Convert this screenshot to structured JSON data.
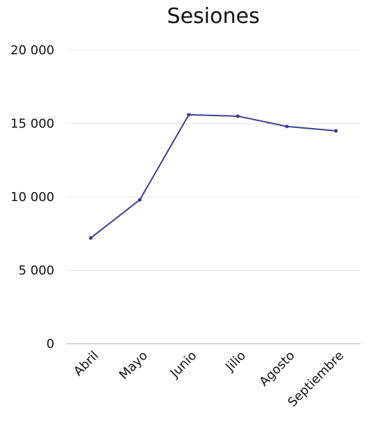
{
  "chart_data": {
    "type": "line",
    "title": "Sesiones",
    "xlabel": "",
    "ylabel": "",
    "categories": [
      "Abril",
      "Mayo",
      "Junio",
      "Jilio",
      "Agosto",
      "Septiembre"
    ],
    "series": [
      {
        "values": [
          7200,
          9800,
          15600,
          15500,
          14800,
          14500
        ]
      }
    ],
    "ylim": [
      0,
      20000
    ],
    "yticks": [
      0,
      5000,
      10000,
      15000,
      20000
    ],
    "ytick_labels": [
      "0",
      "5 000",
      "10 000",
      "15 000",
      "20 000"
    ],
    "grid": true,
    "legend": "none",
    "colors": {
      "line": "#3b3f8f",
      "grid": "#e6e6e6",
      "axis": "#b0b0b0"
    }
  }
}
